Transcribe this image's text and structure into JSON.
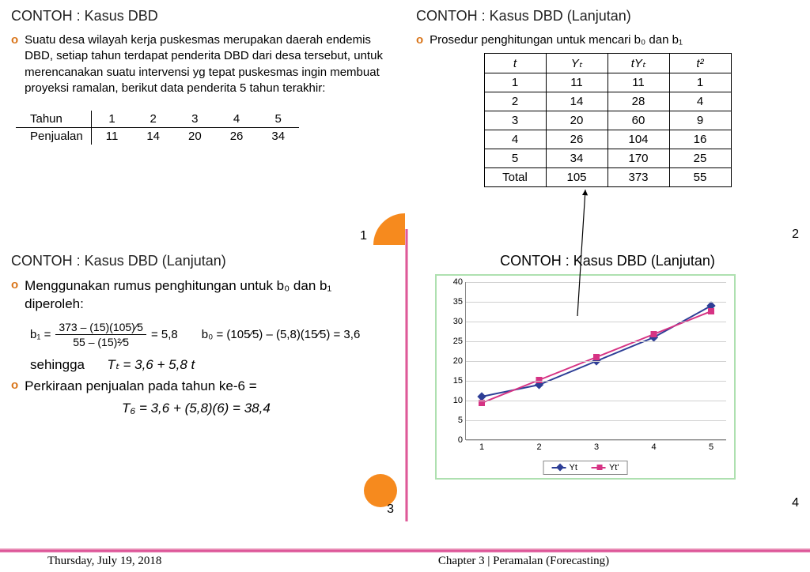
{
  "footer": {
    "date": "Thursday, July 19, 2018",
    "chapter": "Chapter 3 | Peramalan (Forecasting)"
  },
  "slide1": {
    "title": "CONTOH : Kasus DBD",
    "body": "Suatu desa wilayah kerja puskesmas merupakan daerah endemis DBD, setiap tahun terdapat penderita DBD dari desa tersebut, untuk merencanakan suatu intervensi yg tepat puskesmas ingin membuat proyeksi ramalan, berikut data penderita 5 tahun terakhir:",
    "row1_label": "Tahun",
    "row2_label": "Penjualan",
    "tahun": [
      "1",
      "2",
      "3",
      "4",
      "5"
    ],
    "penjualan": [
      "11",
      "14",
      "20",
      "26",
      "34"
    ],
    "page": "1"
  },
  "slide2": {
    "title": "CONTOH : Kasus DBD (Lanjutan)",
    "body": "Prosedur penghitungan untuk mencari b₀ dan b₁",
    "headers": [
      "t",
      "Yₜ",
      "tYₜ",
      "t²"
    ],
    "rows": [
      [
        "1",
        "11",
        "11",
        "1"
      ],
      [
        "2",
        "14",
        "28",
        "4"
      ],
      [
        "3",
        "20",
        "60",
        "9"
      ],
      [
        "4",
        "26",
        "104",
        "16"
      ],
      [
        "5",
        "34",
        "170",
        "25"
      ],
      [
        "Total",
        "105",
        "373",
        "55"
      ]
    ],
    "page": "2"
  },
  "slide3": {
    "title": "CONTOH : Kasus DBD (Lanjutan)",
    "lead": "Menggunakan rumus penghitungan untuk b₀ dan b₁ diperoleh:",
    "b1": {
      "prefix": "b₁ =",
      "num": "373 – (15)(105)⁄5",
      "den": "55 – (15)²⁄5",
      "result": "= 5,8"
    },
    "b0": "b₀ = (105⁄5) – (5,8)(15⁄5) = 3,6",
    "sehingga_label": "sehingga",
    "sehingga_eq": "Tₜ = 3,6 + 5,8 t",
    "perk_label": "Perkiraan penjualan pada tahun ke-6 =",
    "perk_eq": "T₆ = 3,6 + (5,8)(6) = 38,4",
    "page": "3"
  },
  "slide4": {
    "title": "CONTOH : Kasus DBD  (Lanjutan)",
    "page": "4",
    "chart": {
      "ymax": 40,
      "ystep": 5,
      "x": [
        1,
        2,
        3,
        4,
        5
      ],
      "series": [
        {
          "name": "Yt",
          "color": "#2d3e96",
          "marker": "diamond",
          "values": [
            11,
            14,
            20,
            26,
            34
          ]
        },
        {
          "name": "Yt'",
          "color": "#d63384",
          "marker": "square",
          "values": [
            9.4,
            15.2,
            21,
            26.8,
            32.6
          ]
        }
      ],
      "grid_color": "#d0d0d0",
      "border_color": "#aee0b0",
      "label_fontsize": 11
    }
  }
}
